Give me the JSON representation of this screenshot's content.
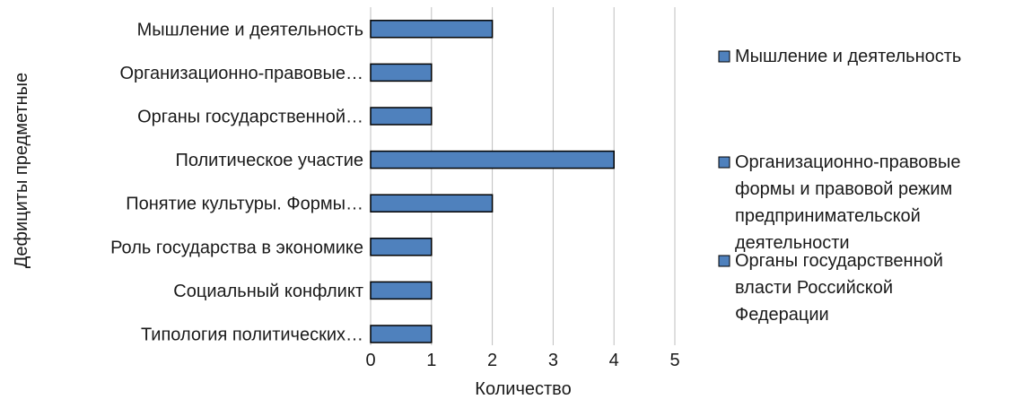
{
  "chart_data": {
    "type": "bar",
    "orientation": "horizontal",
    "categories": [
      "Мышление и деятельность",
      "Организационно-правовые…",
      "Органы государственной…",
      "Политическое участие",
      "Понятие культуры.   Формы…",
      "Роль государства в экономике",
      "Социальный конфликт",
      "Типология политических…"
    ],
    "values": [
      2,
      1,
      1,
      4,
      2,
      1,
      1,
      1
    ],
    "xlabel": "Количество",
    "ylabel": "Дефициты предметные",
    "xlim": [
      0,
      5
    ],
    "x_ticks": [
      "0",
      "1",
      "2",
      "3",
      "4",
      "5"
    ],
    "grid": "vertical",
    "bar_color": "#4f81bd",
    "bar_border_color": "#000000",
    "legend_position": "right",
    "legend": [
      {
        "lines": [
          "Мышление и деятельность"
        ]
      },
      {
        "lines": [
          "Организационно-правовые",
          "формы   и   правовой режим",
          "предпринимательской",
          "деятельности"
        ]
      },
      {
        "lines": [
          "Органы государственной",
          "власти   Российской",
          "Федерации"
        ]
      }
    ]
  }
}
